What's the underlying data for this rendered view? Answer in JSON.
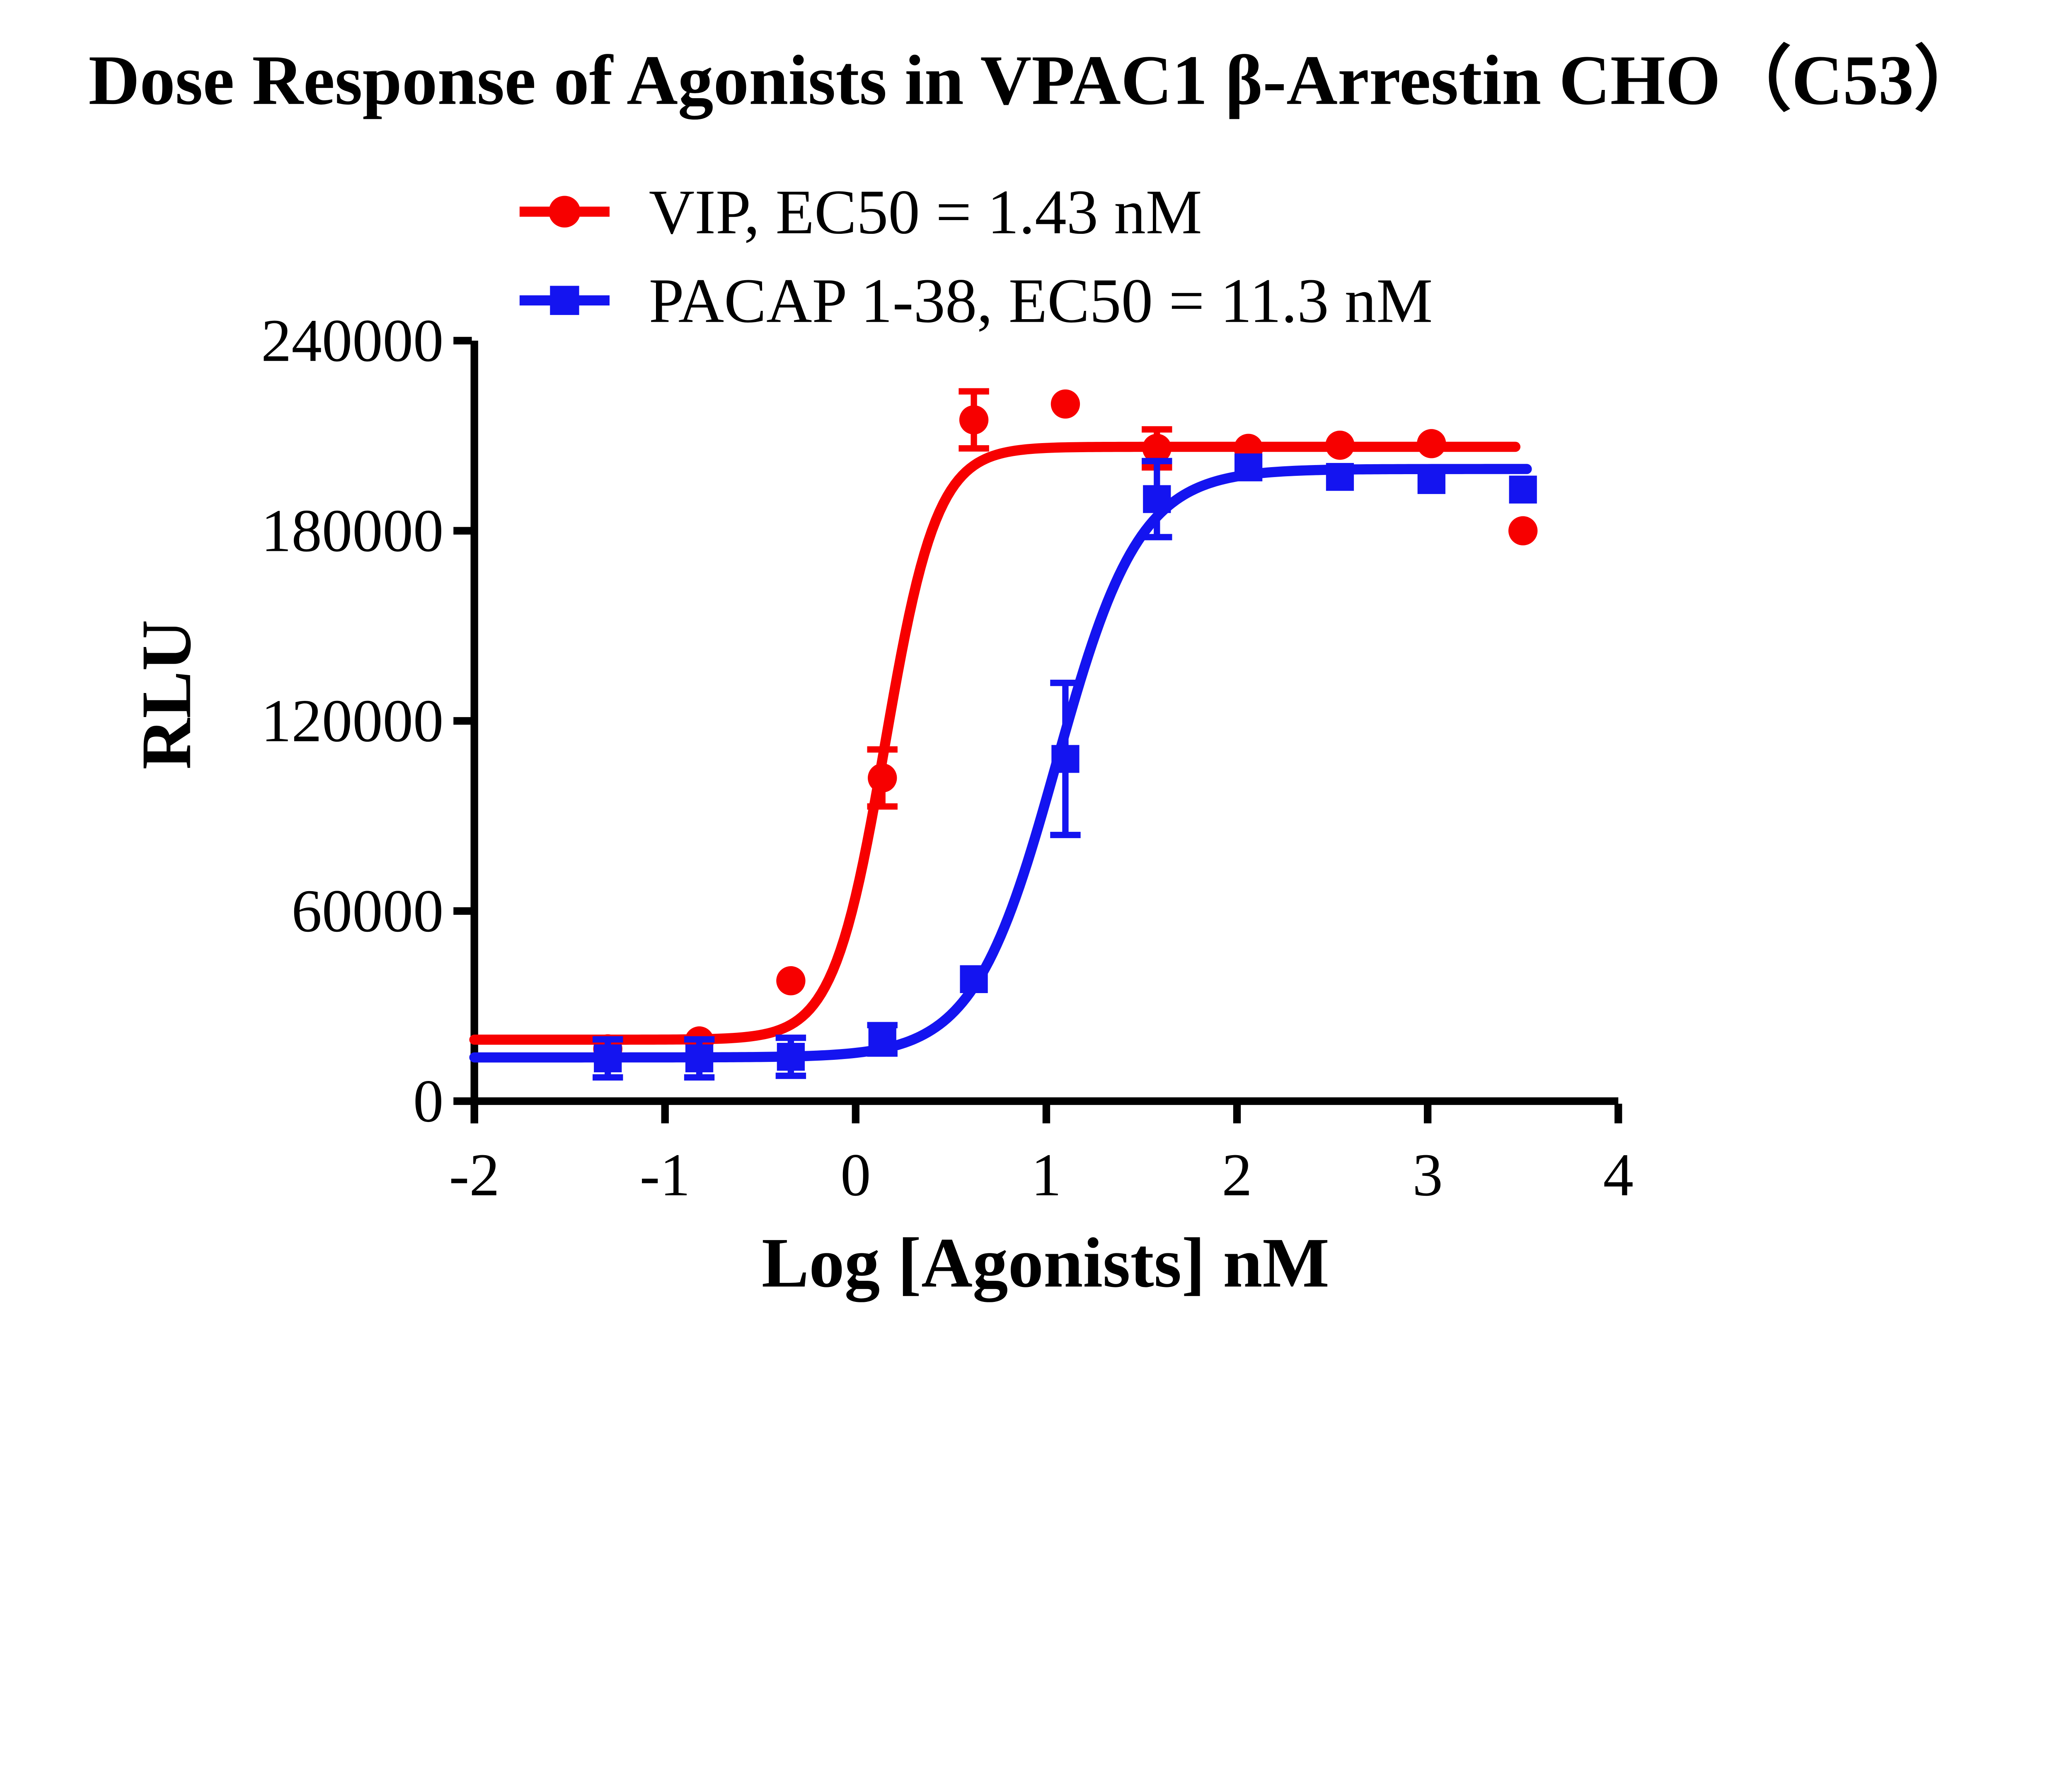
{
  "title": "Dose Response of Agonists in VPAC1 β-Arrestin CHO（C53）",
  "legend": {
    "items": [
      {
        "label": "VIP, EC50 = 1.43 nM",
        "marker": "circle",
        "color": "#f70000"
      },
      {
        "label": "PACAP 1-38, EC50 = 11.3 nM",
        "marker": "square",
        "color": "#1414f0"
      }
    ]
  },
  "chart_data": {
    "type": "scatter",
    "title": "Dose Response of Agonists in VPAC1 β-Arrestin CHO（C53）",
    "xlabel": "Log [Agonists] nM",
    "ylabel": "RLU",
    "xlim": [
      -2,
      4
    ],
    "ylim": [
      0,
      240000
    ],
    "xticks": [
      -2,
      -1,
      0,
      1,
      2,
      3,
      4
    ],
    "yticks": [
      0,
      60000,
      120000,
      180000,
      240000
    ],
    "grid": false,
    "legend_position": "top-left-above-plot",
    "series": [
      {
        "name": "VIP",
        "ec50_label": "EC50 = 1.43 nM",
        "ec50_nM": 1.43,
        "color": "#f70000",
        "marker": "circle",
        "x": [
          -1.3,
          -0.82,
          -0.34,
          0.14,
          0.62,
          1.1,
          1.58,
          2.06,
          2.54,
          3.02,
          3.5
        ],
        "y": [
          16500,
          19000,
          38000,
          102000,
          215000,
          220000,
          206000,
          206000,
          207000,
          207500,
          180000
        ],
        "err": [
          0,
          0,
          0,
          9000,
          9000,
          0,
          6000,
          0,
          0,
          0,
          0
        ],
        "fit": {
          "model": "4PL",
          "bottom": 19400,
          "top": 206500,
          "log_ec50": 0.155,
          "hill": 3.2,
          "x_start": -2,
          "x_end": 3.47
        }
      },
      {
        "name": "PACAP 1-38",
        "ec50_label": "EC50 = 11.3 nM",
        "ec50_nM": 11.3,
        "color": "#1414f0",
        "marker": "square",
        "x": [
          -1.3,
          -0.82,
          -0.34,
          0.14,
          0.62,
          1.1,
          1.58,
          2.06,
          2.54,
          3.02,
          3.5
        ],
        "y": [
          13500,
          13500,
          14000,
          19500,
          38500,
          108000,
          190000,
          200000,
          197000,
          196000,
          193000
        ],
        "err": [
          6000,
          6000,
          6000,
          4500,
          0,
          24000,
          12000,
          0,
          0,
          0,
          0
        ],
        "fit": {
          "model": "4PL",
          "bottom": 13800,
          "top": 199500,
          "log_ec50": 1.053,
          "hill": 2.0,
          "x_start": -2,
          "x_end": 3.52
        }
      }
    ]
  }
}
